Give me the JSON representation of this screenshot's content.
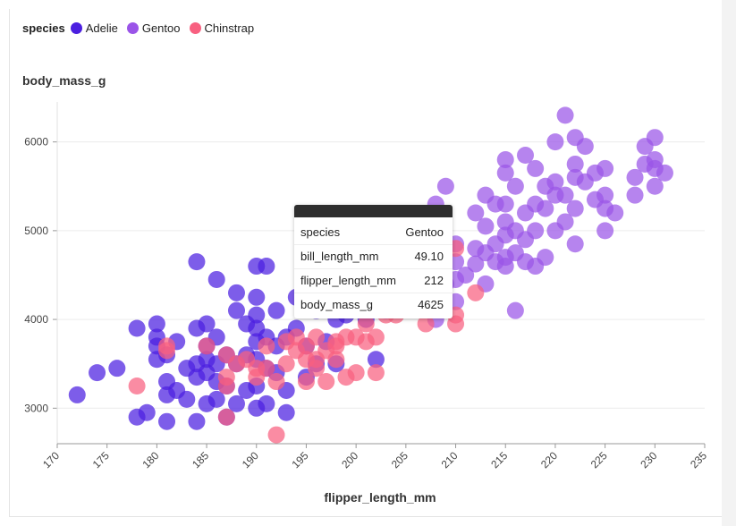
{
  "legend": {
    "title": "species",
    "items": [
      {
        "label": "Adelie",
        "color": "#4b1fe0"
      },
      {
        "label": "Gentoo",
        "color": "#9a54e8"
      },
      {
        "label": "Chinstrap",
        "color": "#f86080"
      }
    ]
  },
  "tooltip": {
    "rows": [
      {
        "key": "species",
        "value": "Gentoo"
      },
      {
        "key": "bill_length_mm",
        "value": "49.10"
      },
      {
        "key": "flipper_length_mm",
        "value": "212"
      },
      {
        "key": "body_mass_g",
        "value": "4625"
      }
    ]
  },
  "chart_data": {
    "type": "scatter",
    "xlabel": "flipper_length_mm",
    "ylabel": "body_mass_g",
    "xlim": [
      170,
      235
    ],
    "ylim": [
      2600,
      6450
    ],
    "x_ticks": [
      170,
      175,
      180,
      185,
      190,
      195,
      200,
      205,
      210,
      215,
      220,
      225,
      230,
      235
    ],
    "y_ticks": [
      3000,
      4000,
      5000,
      6000
    ],
    "grid": "horizontal",
    "legend_placement": "top-left",
    "series": [
      {
        "name": "Adelie",
        "color": "#4b1fe0",
        "points": [
          [
            172,
            3150
          ],
          [
            174,
            3400
          ],
          [
            176,
            3450
          ],
          [
            178,
            3900
          ],
          [
            178,
            2900
          ],
          [
            179,
            2950
          ],
          [
            180,
            3950
          ],
          [
            180,
            3800
          ],
          [
            180,
            3700
          ],
          [
            180,
            3550
          ],
          [
            181,
            3600
          ],
          [
            181,
            3300
          ],
          [
            181,
            3150
          ],
          [
            181,
            2850
          ],
          [
            182,
            3750
          ],
          [
            182,
            3200
          ],
          [
            183,
            3450
          ],
          [
            183,
            3100
          ],
          [
            184,
            4650
          ],
          [
            184,
            3900
          ],
          [
            184,
            3500
          ],
          [
            184,
            3350
          ],
          [
            184,
            2850
          ],
          [
            185,
            3950
          ],
          [
            185,
            3700
          ],
          [
            185,
            3550
          ],
          [
            185,
            3400
          ],
          [
            185,
            3050
          ],
          [
            186,
            4450
          ],
          [
            186,
            3800
          ],
          [
            186,
            3500
          ],
          [
            186,
            3300
          ],
          [
            186,
            3100
          ],
          [
            187,
            3600
          ],
          [
            187,
            3250
          ],
          [
            187,
            2900
          ],
          [
            188,
            4300
          ],
          [
            188,
            4100
          ],
          [
            188,
            3500
          ],
          [
            188,
            3050
          ],
          [
            189,
            3950
          ],
          [
            189,
            3600
          ],
          [
            189,
            3200
          ],
          [
            190,
            4600
          ],
          [
            190,
            4250
          ],
          [
            190,
            4050
          ],
          [
            190,
            3900
          ],
          [
            190,
            3750
          ],
          [
            190,
            3550
          ],
          [
            190,
            3250
          ],
          [
            190,
            3000
          ],
          [
            191,
            4600
          ],
          [
            191,
            3800
          ],
          [
            191,
            3450
          ],
          [
            191,
            3050
          ],
          [
            192,
            4100
          ],
          [
            192,
            3700
          ],
          [
            192,
            3400
          ],
          [
            193,
            3800
          ],
          [
            193,
            2950
          ],
          [
            193,
            3200
          ],
          [
            194,
            4250
          ],
          [
            194,
            3900
          ],
          [
            195,
            4200
          ],
          [
            195,
            3700
          ],
          [
            195,
            3350
          ],
          [
            196,
            4100
          ],
          [
            196,
            3500
          ],
          [
            197,
            4150
          ],
          [
            197,
            3750
          ],
          [
            198,
            4000
          ],
          [
            198,
            3500
          ],
          [
            199,
            4050
          ],
          [
            200,
            4150
          ],
          [
            201,
            4000
          ],
          [
            202,
            3550
          ]
        ]
      },
      {
        "name": "Gentoo",
        "color": "#9a54e8",
        "points": [
          [
            203,
            4100
          ],
          [
            208,
            4000
          ],
          [
            208,
            5300
          ],
          [
            209,
            4400
          ],
          [
            209,
            5500
          ],
          [
            210,
            4450
          ],
          [
            210,
            4200
          ],
          [
            210,
            4650
          ],
          [
            210,
            4850
          ],
          [
            211,
            4500
          ],
          [
            212,
            4625
          ],
          [
            212,
            4800
          ],
          [
            212,
            5200
          ],
          [
            213,
            4400
          ],
          [
            213,
            4750
          ],
          [
            213,
            5400
          ],
          [
            213,
            5050
          ],
          [
            214,
            4650
          ],
          [
            214,
            4850
          ],
          [
            214,
            5300
          ],
          [
            215,
            4600
          ],
          [
            215,
            4700
          ],
          [
            215,
            4950
          ],
          [
            215,
            5100
          ],
          [
            215,
            5300
          ],
          [
            215,
            5650
          ],
          [
            215,
            5800
          ],
          [
            216,
            4100
          ],
          [
            216,
            4750
          ],
          [
            216,
            5000
          ],
          [
            216,
            5500
          ],
          [
            217,
            4900
          ],
          [
            217,
            4650
          ],
          [
            217,
            5200
          ],
          [
            217,
            5850
          ],
          [
            218,
            4600
          ],
          [
            218,
            5000
          ],
          [
            218,
            5300
          ],
          [
            218,
            5700
          ],
          [
            219,
            4700
          ],
          [
            219,
            5250
          ],
          [
            219,
            5500
          ],
          [
            220,
            5000
          ],
          [
            220,
            5400
          ],
          [
            220,
            5550
          ],
          [
            220,
            6000
          ],
          [
            221,
            5100
          ],
          [
            221,
            5400
          ],
          [
            221,
            6300
          ],
          [
            222,
            4850
          ],
          [
            222,
            5250
          ],
          [
            222,
            5600
          ],
          [
            222,
            5750
          ],
          [
            222,
            6050
          ],
          [
            223,
            5550
          ],
          [
            223,
            5950
          ],
          [
            224,
            5350
          ],
          [
            224,
            5650
          ],
          [
            225,
            5000
          ],
          [
            225,
            5250
          ],
          [
            225,
            5400
          ],
          [
            225,
            5700
          ],
          [
            226,
            5200
          ],
          [
            228,
            5400
          ],
          [
            228,
            5600
          ],
          [
            229,
            5750
          ],
          [
            229,
            5950
          ],
          [
            230,
            5500
          ],
          [
            230,
            5700
          ],
          [
            230,
            5800
          ],
          [
            230,
            6050
          ],
          [
            231,
            5650
          ]
        ]
      },
      {
        "name": "Chinstrap",
        "color": "#f86080",
        "points": [
          [
            178,
            3250
          ],
          [
            181,
            3700
          ],
          [
            181,
            3650
          ],
          [
            185,
            3700
          ],
          [
            187,
            3600
          ],
          [
            187,
            3350
          ],
          [
            187,
            2900
          ],
          [
            187,
            3250
          ],
          [
            188,
            3500
          ],
          [
            189,
            3550
          ],
          [
            190,
            3450
          ],
          [
            190,
            3350
          ],
          [
            191,
            3700
          ],
          [
            191,
            3450
          ],
          [
            192,
            3300
          ],
          [
            192,
            2700
          ],
          [
            193,
            3750
          ],
          [
            193,
            3500
          ],
          [
            194,
            3800
          ],
          [
            194,
            3650
          ],
          [
            195,
            3700
          ],
          [
            195,
            3550
          ],
          [
            195,
            3300
          ],
          [
            196,
            3800
          ],
          [
            196,
            3450
          ],
          [
            196,
            3550
          ],
          [
            197,
            3650
          ],
          [
            197,
            3300
          ],
          [
            198,
            3750
          ],
          [
            198,
            3700
          ],
          [
            198,
            3550
          ],
          [
            199,
            3350
          ],
          [
            199,
            3800
          ],
          [
            200,
            3400
          ],
          [
            200,
            3800
          ],
          [
            201,
            3950
          ],
          [
            201,
            3750
          ],
          [
            202,
            3400
          ],
          [
            202,
            3800
          ],
          [
            203,
            4050
          ],
          [
            204,
            4050
          ],
          [
            207,
            3950
          ],
          [
            210,
            3950
          ],
          [
            210,
            4050
          ],
          [
            210,
            4800
          ],
          [
            212,
            4300
          ]
        ]
      }
    ]
  }
}
